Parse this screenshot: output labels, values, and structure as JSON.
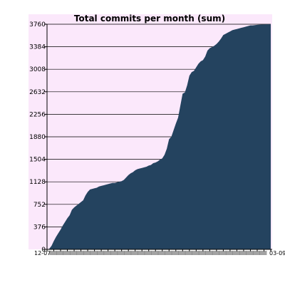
{
  "chart_data": {
    "type": "area",
    "title": "Total commits per month (sum)",
    "xlabel": "",
    "ylabel": "",
    "ylim": [
      0,
      3760
    ],
    "yticks": [
      0,
      376,
      752,
      1128,
      1504,
      1880,
      2256,
      2632,
      3008,
      3384,
      3760
    ],
    "xlim": [
      0,
      99
    ],
    "x_tick_labels_note": "dense overlapping tick labels; first visible 12-07, last visible 03-09",
    "x_tick_first": "12-07",
    "x_tick_last": "03-09",
    "grid": "horizontal",
    "legend": "none",
    "colors": {
      "fill": "#24435f",
      "background": "#fbe8fb",
      "gridline": "#000000"
    },
    "x": [
      0,
      1,
      2,
      3,
      4,
      5,
      6,
      7,
      8,
      9,
      10,
      11,
      12,
      13,
      14,
      15,
      16,
      17,
      18,
      19,
      20,
      21,
      22,
      23,
      24,
      25,
      26,
      27,
      28,
      29,
      30,
      31,
      32,
      33,
      34,
      35,
      36,
      37,
      38,
      39,
      40,
      41,
      42,
      43,
      44,
      45,
      46,
      47,
      48,
      49,
      50,
      51,
      52,
      53,
      54,
      55,
      56,
      57,
      58,
      59,
      60,
      61,
      62,
      63,
      64,
      65,
      66,
      67,
      68,
      69,
      70,
      71,
      72,
      73,
      74,
      75,
      76,
      77,
      78,
      79,
      80,
      81,
      82,
      83,
      84,
      85,
      86,
      87,
      88,
      89,
      90,
      91,
      92,
      93,
      94,
      95,
      96,
      97,
      98,
      99
    ],
    "values": [
      0,
      10,
      60,
      140,
      210,
      270,
      330,
      400,
      460,
      520,
      570,
      660,
      700,
      730,
      760,
      790,
      820,
      900,
      960,
      1000,
      1010,
      1020,
      1030,
      1050,
      1060,
      1070,
      1080,
      1090,
      1100,
      1110,
      1110,
      1120,
      1130,
      1140,
      1160,
      1200,
      1240,
      1270,
      1290,
      1320,
      1340,
      1350,
      1360,
      1370,
      1380,
      1400,
      1410,
      1440,
      1450,
      1470,
      1500,
      1520,
      1580,
      1680,
      1840,
      1880,
      1990,
      2100,
      2200,
      2400,
      2600,
      2620,
      2740,
      2900,
      2960,
      2980,
      3040,
      3100,
      3140,
      3160,
      3220,
      3320,
      3360,
      3380,
      3400,
      3430,
      3470,
      3520,
      3580,
      3600,
      3620,
      3640,
      3660,
      3670,
      3680,
      3690,
      3700,
      3710,
      3720,
      3730,
      3740,
      3740,
      3745,
      3750,
      3752,
      3754,
      3756,
      3758,
      3759,
      3760
    ]
  }
}
